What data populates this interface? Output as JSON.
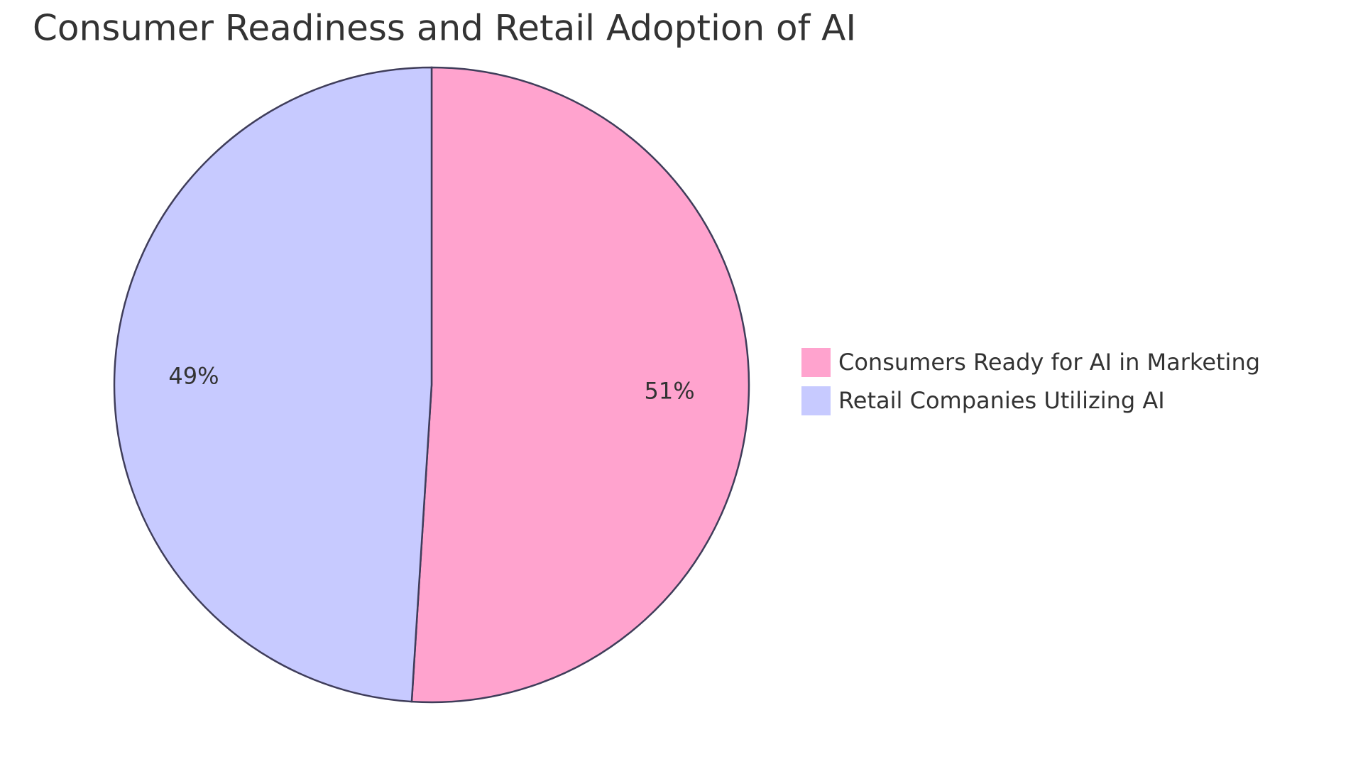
{
  "chart_data": {
    "type": "pie",
    "title": "Consumer Readiness and Retail Adoption of AI",
    "categories": [
      "Consumers Ready for AI in Marketing",
      "Retail Companies Utilizing AI"
    ],
    "values": [
      51,
      49
    ],
    "value_labels": [
      "51%",
      "49%"
    ],
    "colors": [
      "#ffa3ce",
      "#c7caff"
    ],
    "legend": "right"
  }
}
